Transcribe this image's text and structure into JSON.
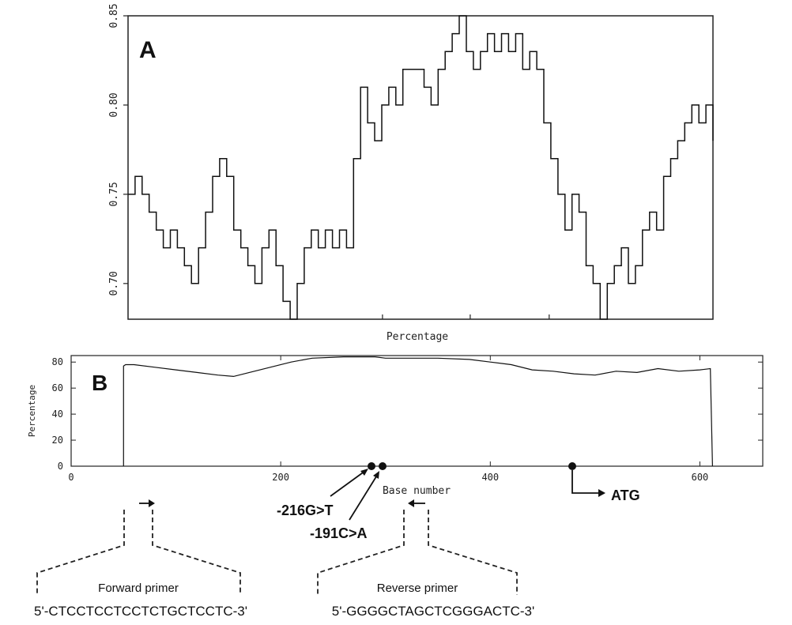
{
  "chart_data": [
    {
      "panel_label": "A",
      "type": "line",
      "xlabel": "Percentage",
      "ylim": [
        0.68,
        0.85
      ],
      "yticks": [
        "0.70",
        "0.75",
        "0.80",
        "0.85"
      ],
      "y": [
        0.75,
        0.76,
        0.75,
        0.74,
        0.73,
        0.72,
        0.73,
        0.72,
        0.71,
        0.7,
        0.72,
        0.74,
        0.76,
        0.77,
        0.76,
        0.73,
        0.72,
        0.71,
        0.7,
        0.72,
        0.73,
        0.71,
        0.69,
        0.68,
        0.7,
        0.72,
        0.73,
        0.72,
        0.73,
        0.72,
        0.73,
        0.72,
        0.77,
        0.81,
        0.79,
        0.78,
        0.8,
        0.81,
        0.8,
        0.82,
        0.82,
        0.82,
        0.81,
        0.8,
        0.82,
        0.83,
        0.84,
        0.85,
        0.83,
        0.82,
        0.83,
        0.84,
        0.83,
        0.84,
        0.83,
        0.84,
        0.82,
        0.83,
        0.82,
        0.79,
        0.77,
        0.75,
        0.73,
        0.75,
        0.74,
        0.71,
        0.7,
        0.68,
        0.7,
        0.71,
        0.72,
        0.7,
        0.71,
        0.73,
        0.74,
        0.73,
        0.76,
        0.77,
        0.78,
        0.79,
        0.8,
        0.79,
        0.8,
        0.78
      ]
    },
    {
      "panel_label": "B",
      "type": "line",
      "xlabel": "Base number",
      "ylabel": "Percentage",
      "xlim": [
        0,
        660
      ],
      "ylim": [
        0,
        85
      ],
      "xticks": [
        "0",
        "200",
        "400",
        "600"
      ],
      "yticks": [
        "0",
        "20",
        "40",
        "60",
        "80"
      ],
      "x": [
        50,
        50,
        52,
        60,
        80,
        100,
        120,
        140,
        155,
        170,
        190,
        210,
        230,
        260,
        290,
        300,
        320,
        350,
        380,
        400,
        420,
        440,
        460,
        480,
        500,
        520,
        540,
        560,
        580,
        600,
        610,
        612
      ],
      "y": [
        0,
        77,
        78,
        78,
        76,
        74,
        72,
        70,
        69,
        72,
        76,
        80,
        83,
        84,
        84,
        83,
        83,
        83,
        82,
        80,
        78,
        74,
        73,
        71,
        70,
        73,
        72,
        75,
        73,
        74,
        75,
        0
      ],
      "markers": [
        {
          "label": "-216G>T",
          "x": 290
        },
        {
          "label": "-191C>A",
          "x": 305
        },
        {
          "label": "ATG",
          "x": 480
        }
      ]
    }
  ],
  "primers": {
    "forward_label": "Forward primer",
    "forward_seq": "5'-CTCCTCCTCCTCTGCTCCTC-3'",
    "reverse_label": "Reverse primer",
    "reverse_seq": "5'-GGGGCTAGCTCGGGACTC-3'"
  }
}
